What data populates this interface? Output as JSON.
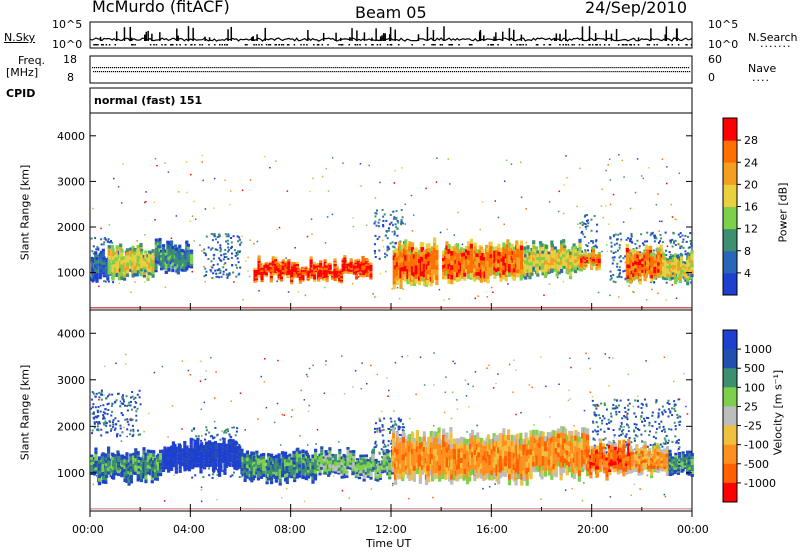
{
  "header": {
    "station": "McMurdo (fitACF)",
    "beam": "Beam 05",
    "date": "24/Sep/2010"
  },
  "noise_panel": {
    "left_label": "N.Sky",
    "right_label": "N.Search",
    "left_ticks": [
      "10^5",
      "10^0"
    ],
    "right_ticks": [
      "10^5",
      "10^0"
    ]
  },
  "freq_panel": {
    "left_label": "Freq.",
    "left_unit": "[MHz]",
    "right_label": "Nave",
    "left_ticks": [
      "18",
      "8"
    ],
    "right_ticks": [
      "60",
      "0"
    ]
  },
  "cpid_panel": {
    "label": "CPID",
    "value": "normal (fast) 151"
  },
  "x_axis": {
    "label": "Time UT",
    "ticks": [
      "00:00",
      "04:00",
      "08:00",
      "12:00",
      "16:00",
      "20:00",
      "00:00"
    ]
  },
  "colors": {
    "power_scale": [
      "#1f3fd0",
      "#2a66b8",
      "#3c8f6f",
      "#7ed04c",
      "#e8d040",
      "#f3a020",
      "#ff7000",
      "#ff0000"
    ],
    "velocity_scale": [
      "#1f3fd0",
      "#2050b0",
      "#3c8f6f",
      "#7ed04c",
      "#bdbdbd",
      "#f0c040",
      "#ff9020",
      "#ff6000",
      "#ff0000"
    ]
  },
  "chart_data": [
    {
      "type": "heatmap",
      "name": "power",
      "ylabel": "Slant Range [km]",
      "ylim": [
        180,
        4500
      ],
      "y_ticks": [
        1000,
        2000,
        3000,
        4000
      ],
      "xlim": [
        0,
        24
      ],
      "colorbar_label": "Power [dB]",
      "colorbar_ticks": [
        "4",
        "8",
        "12",
        "16",
        "20",
        "24",
        "28"
      ],
      "scatter_bands": [
        {
          "x0": 0.0,
          "x1": 1.0,
          "y0": 800,
          "y1": 1800
        },
        {
          "x0": 4.5,
          "x1": 6.0,
          "y0": 900,
          "y1": 1900
        },
        {
          "x0": 11.3,
          "x1": 12.5,
          "y0": 1300,
          "y1": 2400
        },
        {
          "x0": 19.5,
          "x1": 20.2,
          "y0": 1200,
          "y1": 2300
        },
        {
          "x0": 20.7,
          "x1": 24.0,
          "y0": 800,
          "y1": 1900
        }
      ],
      "echo_bands": [
        {
          "x0": 0.0,
          "x1": 0.7,
          "y0": 800,
          "y1": 1500,
          "level": 1
        },
        {
          "x0": 0.7,
          "x1": 2.5,
          "y0": 800,
          "y1": 1600,
          "level": 4
        },
        {
          "x0": 2.5,
          "x1": 4.0,
          "y0": 1000,
          "y1": 1700,
          "level": 2
        },
        {
          "x0": 6.5,
          "x1": 11.2,
          "y0": 800,
          "y1": 1300,
          "level": 7
        },
        {
          "x0": 12.0,
          "x1": 13.8,
          "y0": 700,
          "y1": 1700,
          "level": 6
        },
        {
          "x0": 14.0,
          "x1": 17.2,
          "y0": 800,
          "y1": 1700,
          "level": 6
        },
        {
          "x0": 17.2,
          "x1": 19.5,
          "y0": 900,
          "y1": 1700,
          "level": 4
        },
        {
          "x0": 19.5,
          "x1": 20.3,
          "y0": 1000,
          "y1": 1500,
          "level": 6
        },
        {
          "x0": 21.3,
          "x1": 22.8,
          "y0": 800,
          "y1": 1600,
          "level": 6
        },
        {
          "x0": 22.8,
          "x1": 24.0,
          "y0": 800,
          "y1": 1500,
          "level": 4
        }
      ]
    },
    {
      "type": "heatmap",
      "name": "velocity",
      "ylabel": "Slant Range [km]",
      "ylim": [
        180,
        4500
      ],
      "y_ticks": [
        1000,
        2000,
        3000,
        4000
      ],
      "xlim": [
        0,
        24
      ],
      "colorbar_label": "Velocity [m s⁻¹]",
      "colorbar_ticks": [
        "1000",
        "500",
        "100",
        "25",
        "-25",
        "-100",
        "-500",
        "-1000"
      ],
      "scatter_bands": [
        {
          "x0": 0.0,
          "x1": 2.0,
          "y0": 1800,
          "y1": 2800
        },
        {
          "x0": 4.0,
          "x1": 6.0,
          "y0": 900,
          "y1": 2000
        },
        {
          "x0": 11.3,
          "x1": 12.5,
          "y0": 1300,
          "y1": 2200
        },
        {
          "x0": 20.0,
          "x1": 23.5,
          "y0": 1400,
          "y1": 2600
        }
      ],
      "echo_bands": [
        {
          "x0": 0.0,
          "x1": 2.8,
          "y0": 800,
          "y1": 1500,
          "level": 2
        },
        {
          "x0": 2.8,
          "x1": 6.0,
          "y0": 1000,
          "y1": 1700,
          "level": 0
        },
        {
          "x0": 6.0,
          "x1": 9.0,
          "y0": 800,
          "y1": 1500,
          "level": 2
        },
        {
          "x0": 9.0,
          "x1": 12.0,
          "y0": 900,
          "y1": 1500,
          "level": 3
        },
        {
          "x0": 12.0,
          "x1": 17.5,
          "y0": 800,
          "y1": 1900,
          "level": 6
        },
        {
          "x0": 17.5,
          "x1": 19.8,
          "y0": 900,
          "y1": 2000,
          "level": 6
        },
        {
          "x0": 19.8,
          "x1": 21.5,
          "y0": 900,
          "y1": 1700,
          "level": 7
        },
        {
          "x0": 21.5,
          "x1": 23.0,
          "y0": 900,
          "y1": 1600,
          "level": 6
        },
        {
          "x0": 23.0,
          "x1": 24.0,
          "y0": 900,
          "y1": 1500,
          "level": 2
        }
      ]
    }
  ]
}
